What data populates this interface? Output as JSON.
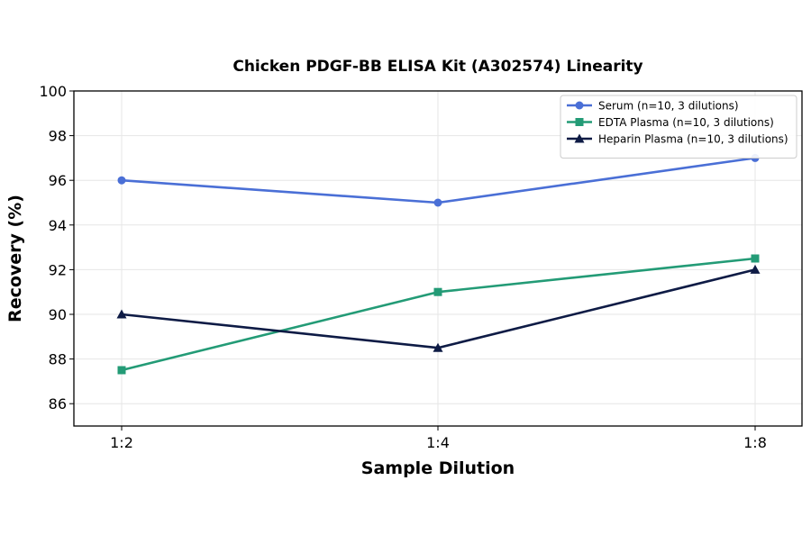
{
  "chart_data": {
    "type": "line",
    "title": "Chicken PDGF-BB ELISA Kit (A302574) Linearity",
    "xlabel": "Sample Dilution",
    "ylabel": "Recovery (%)",
    "categories": [
      "1:2",
      "1:4",
      "1:8"
    ],
    "ylim": [
      85,
      100
    ],
    "yticks": [
      86,
      88,
      90,
      92,
      94,
      96,
      98,
      100
    ],
    "grid": true,
    "legend_position": "top-right",
    "series": [
      {
        "name": "Serum (n=10, 3 dilutions)",
        "values": [
          96,
          95,
          97
        ],
        "color": "#4a6fd6",
        "marker": "circle"
      },
      {
        "name": "EDTA Plasma (n=10, 3 dilutions)",
        "values": [
          87.5,
          91,
          92.5
        ],
        "color": "#239b76",
        "marker": "square"
      },
      {
        "name": "Heparin Plasma (n=10, 3 dilutions)",
        "values": [
          90,
          88.5,
          92
        ],
        "color": "#0e1b45",
        "marker": "triangle"
      }
    ]
  }
}
